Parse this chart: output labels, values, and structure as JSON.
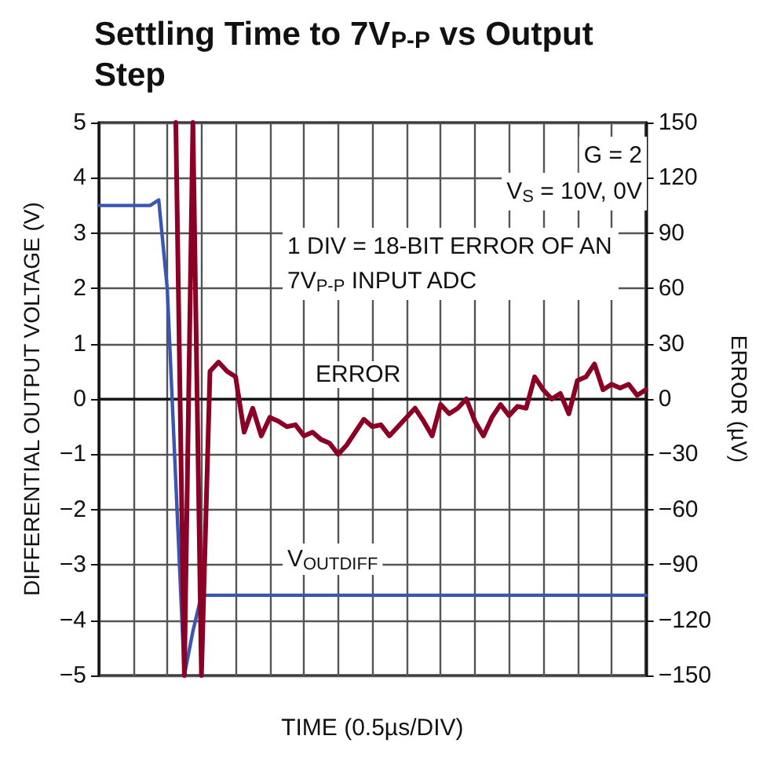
{
  "chart_data": {
    "type": "line",
    "title": "Settling Time to 7V$_{P-P}$ vs Output Step",
    "xlabel": "TIME (0.5µs/DIV)",
    "ylabel": "DIFFERENTIAL OUTPUT VOLTAGE (V)",
    "y2label": "ERROR (µV)",
    "categories": [
      null,
      null,
      null,
      null,
      null,
      null,
      null,
      null,
      null,
      null,
      null,
      null,
      null,
      null,
      null,
      null,
      null,
      null,
      null,
      null,
      null,
      null,
      null,
      null,
      null,
      null,
      null,
      null,
      null,
      null,
      null,
      null,
      null,
      null,
      null,
      null,
      null,
      null,
      null,
      null,
      null,
      null,
      null,
      null,
      null,
      null,
      null,
      null,
      null,
      null,
      null,
      null,
      null,
      null,
      null,
      null,
      null,
      null,
      null,
      null,
      null,
      null,
      null,
      null,
      null
    ],
    "series": [
      {
        "name": "V$_{OUTDIFF}$",
        "color": "#3a56b0",
        "values": [
          3.5,
          3.5,
          3.5,
          3.5,
          3.5,
          3.5,
          3.5,
          3.6,
          2.0,
          -1.5,
          -5,
          -4.2,
          -3.55,
          -3.55,
          -3.55,
          -3.55,
          -3.55,
          -3.55,
          -3.55,
          -3.55,
          -3.55,
          -3.55,
          -3.55,
          -3.55,
          -3.55,
          -3.55,
          -3.55,
          -3.55,
          -3.55,
          -3.55,
          -3.55,
          -3.55,
          -3.55,
          -3.55,
          -3.55,
          -3.55,
          -3.55,
          -3.55,
          -3.55,
          -3.55,
          -3.55,
          -3.55,
          -3.55,
          -3.55,
          -3.55,
          -3.55,
          -3.55,
          -3.55,
          -3.55,
          -3.55,
          -3.55,
          -3.55,
          -3.55,
          -3.55,
          -3.55,
          -3.55,
          -3.55,
          -3.55,
          -3.55,
          -3.55,
          -3.55,
          -3.55,
          -3.55,
          -3.55,
          -3.55
        ]
      },
      {
        "name": "ERROR",
        "color": "#8b0025",
        "axis": "y2",
        "values": [
          null,
          null,
          null,
          null,
          null,
          null,
          null,
          null,
          null,
          150,
          -150,
          150,
          -150,
          15,
          20,
          15,
          12,
          -18,
          -5,
          -20,
          -10,
          -12,
          -15,
          -14,
          -20,
          -18,
          -22,
          -24,
          -30,
          -25,
          -18,
          -11,
          -15,
          -14,
          -20,
          -15,
          -10,
          -5,
          -12,
          -20,
          -3,
          -8,
          -5,
          0,
          -12,
          -20,
          -10,
          -3,
          -9,
          -4,
          -5,
          12,
          5,
          0,
          3,
          -8,
          10,
          12,
          19,
          5,
          8,
          6,
          8,
          2,
          5
        ]
      }
    ],
    "ylim": [
      -5,
      5
    ],
    "yticks": [
      -5,
      -4,
      -3,
      -2,
      -1,
      0,
      1,
      2,
      3,
      4,
      5
    ],
    "y2lim": [
      -150,
      150
    ],
    "y2ticks": [
      -150,
      -120,
      -90,
      -60,
      -30,
      0,
      30,
      60,
      90,
      120,
      150
    ],
    "annotations": [
      "G = 2",
      "V$_{S}$ = 10V, 0V",
      "1 DIV = 18-BIT ERROR OF AN\n7V$_{P-P}$ INPUT ADC"
    ],
    "grid": true,
    "legend": false,
    "line_style": "solid"
  }
}
